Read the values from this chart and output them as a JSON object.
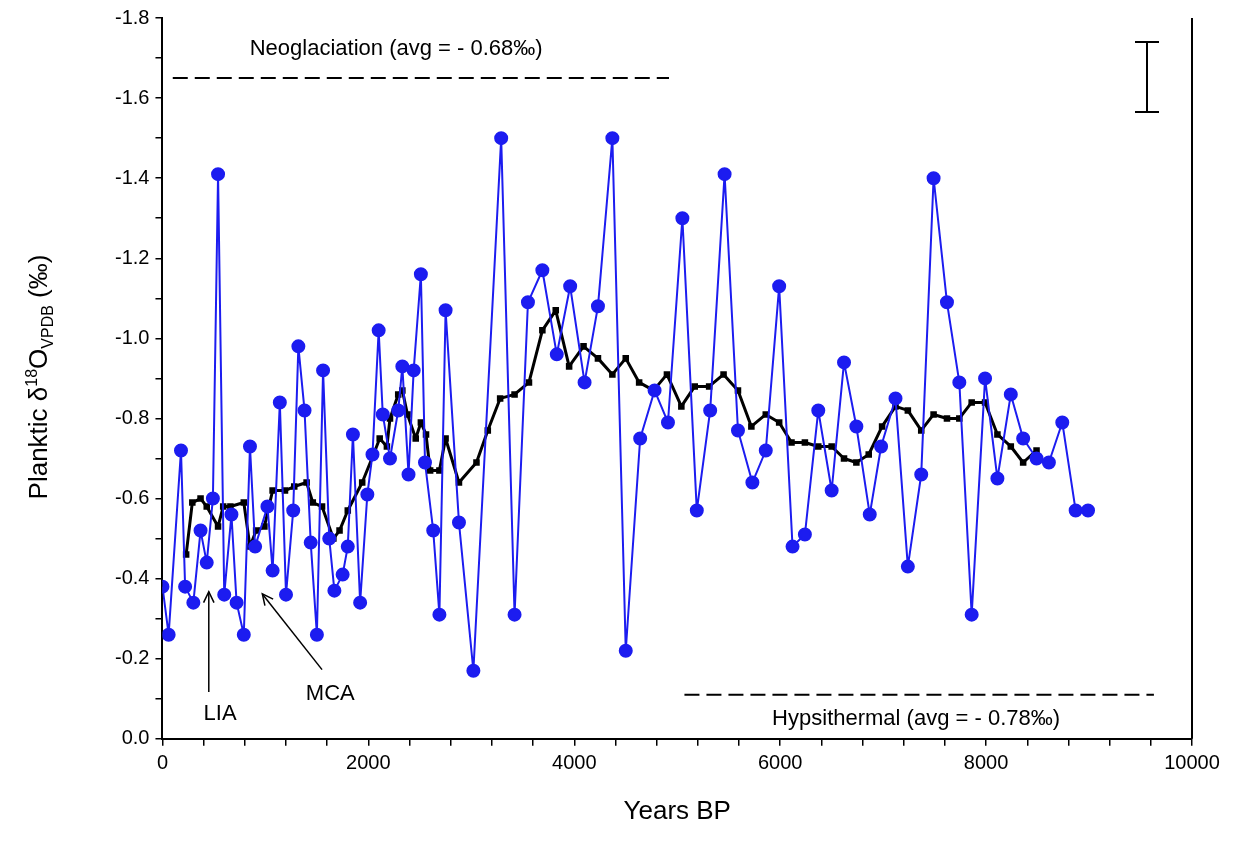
{
  "chart_data": {
    "type": "line",
    "xlabel": "Years BP",
    "ylabel": "Planktic δ$^{18}$O$_{VPDB}$ (‰)",
    "xlim": [
      0,
      10000
    ],
    "xticks": [
      0,
      {
        "value": 400,
        "label": null
      },
      {
        "value": 800,
        "label": null
      },
      {
        "value": 1200,
        "label": null
      },
      {
        "value": 1600,
        "label": null
      },
      2000,
      {
        "value": 2400,
        "label": null
      },
      {
        "value": 2800,
        "label": null
      },
      {
        "value": 3200,
        "label": null
      },
      {
        "value": 3600,
        "label": null
      },
      4000,
      {
        "value": 4400,
        "label": null
      },
      {
        "value": 4800,
        "label": null
      },
      {
        "value": 5200,
        "label": null
      },
      {
        "value": 5600,
        "label": null
      },
      6000,
      {
        "value": 6400,
        "label": null
      },
      {
        "value": 6800,
        "label": null
      },
      {
        "value": 7200,
        "label": null
      },
      {
        "value": 7600,
        "label": null
      },
      8000,
      {
        "value": 8400,
        "label": null
      },
      {
        "value": 8800,
        "label": null
      },
      {
        "value": 9200,
        "label": null
      },
      {
        "value": 9600,
        "label": null
      },
      10000
    ],
    "ylim": [
      0,
      -1.8
    ],
    "yticks": [
      {
        "value": 0,
        "label": "0.0"
      },
      {
        "value": -0.1,
        "label": null
      },
      {
        "value": -0.2,
        "label": "-0.2"
      },
      {
        "value": -0.3,
        "label": null
      },
      {
        "value": -0.4,
        "label": "-0.4"
      },
      {
        "value": -0.5,
        "label": null
      },
      {
        "value": -0.6,
        "label": "-0.6"
      },
      {
        "value": -0.7,
        "label": null
      },
      {
        "value": -0.8,
        "label": "-0.8"
      },
      {
        "value": -0.9,
        "label": null
      },
      {
        "value": -1.0,
        "label": "-1.0"
      },
      {
        "value": -1.1,
        "label": null
      },
      {
        "value": -1.2,
        "label": "-1.2"
      },
      {
        "value": -1.3,
        "label": null
      },
      {
        "value": -1.4,
        "label": "-1.4"
      },
      {
        "value": -1.5,
        "label": null
      },
      {
        "value": -1.6,
        "label": "-1.6"
      },
      {
        "value": -1.7,
        "label": null
      },
      {
        "value": -1.8,
        "label": "-1.8"
      }
    ],
    "grid": false,
    "legend": false,
    "series": [
      {
        "color": "#1c1cf0",
        "marker": "circle",
        "x": [
          0,
          60,
          180,
          220,
          300,
          370,
          430,
          490,
          540,
          600,
          670,
          720,
          790,
          850,
          900,
          1020,
          1070,
          1140,
          1200,
          1270,
          1320,
          1380,
          1440,
          1500,
          1560,
          1620,
          1670,
          1750,
          1800,
          1850,
          1920,
          1990,
          2040,
          2100,
          2140,
          2210,
          2290,
          2330,
          2390,
          2440,
          2510,
          2550,
          2630,
          2690,
          2750,
          2880,
          3020,
          3290,
          3420,
          3550,
          3690,
          3830,
          3960,
          4100,
          4230,
          4370,
          4500,
          4640,
          4780,
          4910,
          5050,
          5190,
          5320,
          5460,
          5590,
          5730,
          5860,
          5990,
          6120,
          6240,
          6370,
          6500,
          6620,
          6740,
          6870,
          6980,
          7120,
          7240,
          7370,
          7490,
          7620,
          7740,
          7860,
          7990,
          8110,
          8240,
          8360,
          8490,
          8610,
          8740,
          8870,
          8990
        ],
        "values": [
          -0.38,
          -0.26,
          -0.72,
          -0.38,
          -0.34,
          -0.52,
          -0.44,
          -0.6,
          -1.41,
          -0.36,
          -0.56,
          -0.34,
          -0.26,
          -0.73,
          -0.48,
          -0.58,
          -0.42,
          -0.84,
          -0.36,
          -0.57,
          -0.98,
          -0.82,
          -0.49,
          -0.26,
          -0.92,
          -0.5,
          -0.37,
          -0.41,
          -0.48,
          -0.76,
          -0.34,
          -0.61,
          -0.71,
          -1.02,
          -0.81,
          -0.7,
          -0.82,
          -0.93,
          -0.66,
          -0.92,
          -1.16,
          -0.69,
          -0.52,
          -0.31,
          -1.07,
          -0.54,
          -0.17,
          -1.5,
          -0.31,
          -1.09,
          -1.17,
          -0.96,
          -1.13,
          -0.89,
          -1.08,
          -1.5,
          -0.22,
          -0.75,
          -0.87,
          -0.79,
          -1.3,
          -0.57,
          -0.82,
          -1.41,
          -0.77,
          -0.64,
          -0.72,
          -1.13,
          -0.48,
          -0.51,
          -0.82,
          -0.62,
          -0.94,
          -0.78,
          -0.56,
          -0.73,
          -0.85,
          -0.43,
          -0.66,
          -1.4,
          -1.09,
          -0.89,
          -0.31,
          -0.9,
          -0.65,
          -0.86,
          -0.75,
          -0.7,
          -0.69,
          -0.79,
          -0.57,
          -0.57
        ]
      },
      {
        "color": "#000000",
        "marker": "square",
        "x": [
          230,
          290,
          370,
          430,
          540,
          590,
          660,
          790,
          850,
          910,
          990,
          1070,
          1190,
          1280,
          1400,
          1460,
          1550,
          1660,
          1720,
          1800,
          1940,
          2050,
          2110,
          2180,
          2210,
          2290,
          2330,
          2380,
          2460,
          2510,
          2560,
          2600,
          2690,
          2750,
          2880,
          3050,
          3160,
          3280,
          3420,
          3560,
          3690,
          3820,
          3950,
          4090,
          4230,
          4370,
          4500,
          4630,
          4770,
          4900,
          5040,
          5170,
          5310,
          5450,
          5590,
          5720,
          5860,
          5990,
          6110,
          6240,
          6370,
          6500,
          6620,
          6740,
          6860,
          6990,
          7120,
          7240,
          7370,
          7490,
          7620,
          7740,
          7860,
          7990,
          8110,
          8240,
          8360,
          8490
        ],
        "values": [
          -0.46,
          -0.59,
          -0.6,
          -0.58,
          -0.53,
          -0.58,
          -0.58,
          -0.59,
          -0.48,
          -0.52,
          -0.53,
          -0.62,
          -0.62,
          -0.63,
          -0.64,
          -0.59,
          -0.58,
          -0.5,
          -0.52,
          -0.57,
          -0.64,
          -0.71,
          -0.75,
          -0.73,
          -0.8,
          -0.86,
          -0.87,
          -0.81,
          -0.75,
          -0.79,
          -0.76,
          -0.67,
          -0.67,
          -0.75,
          -0.64,
          -0.69,
          -0.77,
          -0.85,
          -0.86,
          -0.89,
          -1.02,
          -1.07,
          -0.93,
          -0.98,
          -0.95,
          -0.91,
          -0.95,
          -0.89,
          -0.87,
          -0.91,
          -0.83,
          -0.88,
          -0.88,
          -0.91,
          -0.87,
          -0.78,
          -0.81,
          -0.79,
          -0.74,
          -0.74,
          -0.73,
          -0.73,
          -0.7,
          -0.69,
          -0.71,
          -0.78,
          -0.83,
          -0.82,
          -0.77,
          -0.81,
          -0.8,
          -0.8,
          -0.84,
          -0.84,
          -0.76,
          -0.73,
          -0.69,
          -0.72
        ]
      },
      {
        "color": "#000000",
        "marker": "none",
        "line_style": "dashed",
        "x": [
          100,
          4920
        ],
        "values": [
          -1.65,
          -1.65
        ]
      },
      {
        "color": "#000000",
        "marker": "none",
        "line_style": "dashed",
        "x": [
          5070,
          9630
        ],
        "values": [
          -0.11,
          -0.11
        ]
      }
    ],
    "annotations": [
      "Neoglaciation (avg = - 0.68‰)",
      "Hypsithermal (avg = - 0.78‰)",
      "LIA",
      "MCA"
    ]
  }
}
